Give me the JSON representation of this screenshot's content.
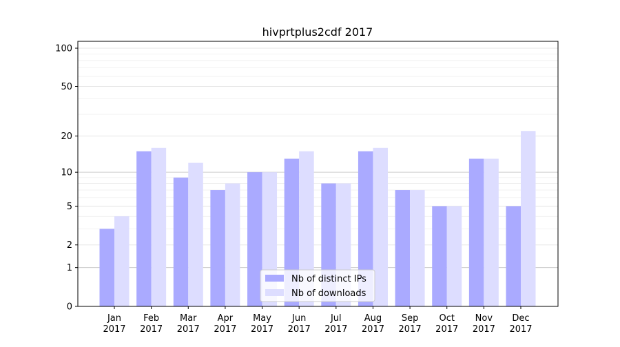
{
  "chart_data": {
    "type": "bar",
    "title": "hivprtplus2cdf 2017",
    "xlabel": "",
    "ylabel": "",
    "yscale": "log(1+y)",
    "ylim": [
      0,
      110
    ],
    "yticks": [
      0,
      1,
      2,
      5,
      10,
      20,
      50,
      100
    ],
    "categories": [
      "Jan\n2017",
      "Feb\n2017",
      "Mar\n2017",
      "Apr\n2017",
      "May\n2017",
      "Jun\n2017",
      "Jul\n2017",
      "Aug\n2017",
      "Sep\n2017",
      "Oct\n2017",
      "Nov\n2017",
      "Dec\n2017"
    ],
    "series": [
      {
        "name": "Nb of distinct IPs",
        "color": "#aaaaff",
        "values": [
          3,
          15,
          9,
          7,
          10,
          13,
          8,
          15,
          7,
          5,
          13,
          5
        ]
      },
      {
        "name": "Nb of downloads",
        "color": "#ddddff",
        "values": [
          4,
          16,
          12,
          8,
          10,
          15,
          8,
          16,
          7,
          5,
          13,
          22
        ]
      }
    ],
    "grid": true,
    "legend_position": "bottom-center"
  }
}
